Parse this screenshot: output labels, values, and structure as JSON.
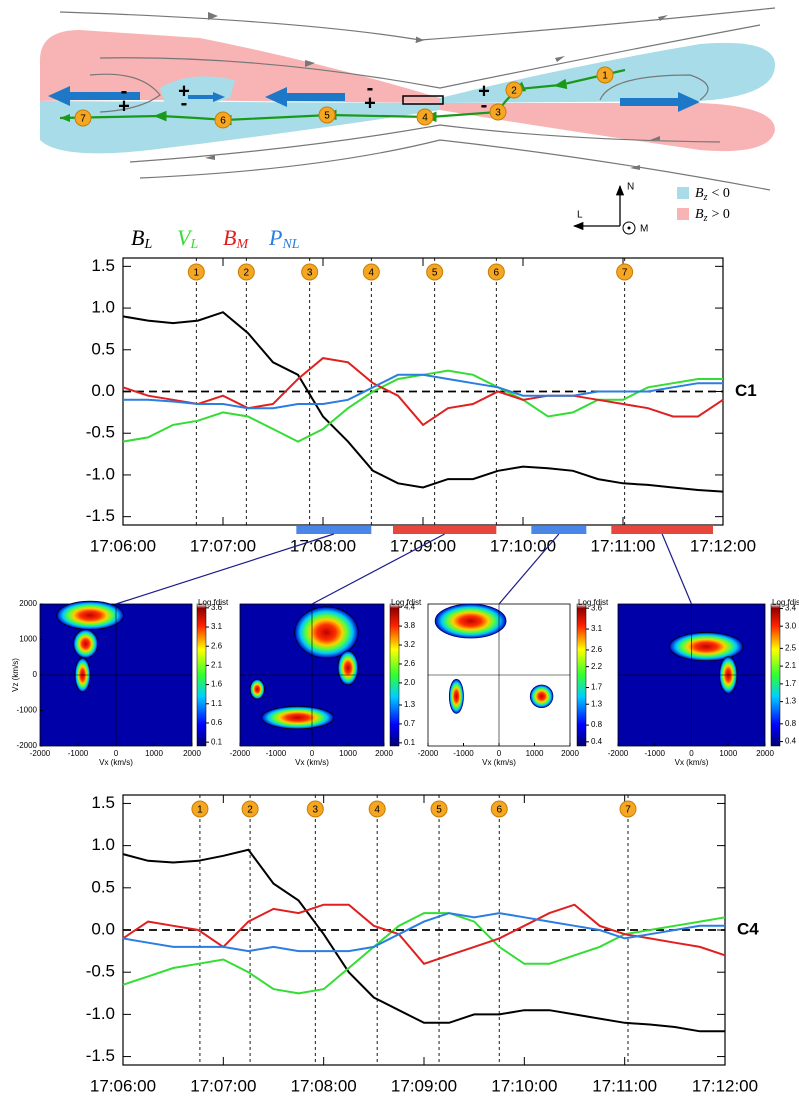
{
  "diagram": {
    "points": [
      "1",
      "2",
      "3",
      "4",
      "5",
      "6",
      "7"
    ],
    "signs": [
      "-",
      "+",
      "+",
      "-",
      "-",
      "+",
      "+",
      "-"
    ],
    "axes": {
      "n": "N",
      "l": "L",
      "m": "M"
    },
    "legend": [
      {
        "text": "B",
        "sub": "z",
        "rest": "< 0",
        "color": "#a8dce8"
      },
      {
        "text": "B",
        "sub": "z",
        "rest": "> 0",
        "color": "#f8b4b4"
      }
    ]
  },
  "chart_data": [
    {
      "type": "line",
      "label": "C1",
      "x": [
        "17:06:00",
        "17:06:15",
        "17:06:30",
        "17:06:45",
        "17:07:00",
        "17:07:15",
        "17:07:30",
        "17:07:45",
        "17:08:00",
        "17:08:15",
        "17:08:30",
        "17:08:45",
        "17:09:00",
        "17:09:15",
        "17:09:30",
        "17:09:45",
        "17:10:00",
        "17:10:15",
        "17:10:30",
        "17:10:45",
        "17:11:00",
        "17:11:15",
        "17:11:30",
        "17:11:45",
        "17:12:00"
      ],
      "series": [
        {
          "name": "B",
          "name_sub": "L",
          "color": "#000000",
          "values": [
            0.9,
            0.85,
            0.82,
            0.85,
            0.95,
            0.7,
            0.35,
            0.2,
            -0.3,
            -0.6,
            -0.95,
            -1.1,
            -1.15,
            -1.05,
            -1.05,
            -0.95,
            -0.9,
            -0.92,
            -0.95,
            -1.05,
            -1.1,
            -1.12,
            -1.15,
            -1.18,
            -1.2
          ]
        },
        {
          "name": "V",
          "name_sub": "L",
          "color": "#33dd33",
          "values": [
            -0.6,
            -0.55,
            -0.4,
            -0.35,
            -0.25,
            -0.3,
            -0.45,
            -0.6,
            -0.45,
            -0.2,
            0.0,
            0.15,
            0.2,
            0.25,
            0.2,
            0.05,
            -0.1,
            -0.3,
            -0.25,
            -0.1,
            -0.1,
            0.05,
            0.1,
            0.15,
            0.15
          ]
        },
        {
          "name": "B",
          "name_sub": "M",
          "color": "#e02020",
          "values": [
            0.05,
            -0.05,
            -0.1,
            -0.15,
            -0.05,
            -0.2,
            -0.15,
            0.15,
            0.4,
            0.35,
            0.1,
            -0.05,
            -0.4,
            -0.2,
            -0.15,
            0.0,
            -0.1,
            -0.05,
            -0.05,
            -0.1,
            -0.15,
            -0.2,
            -0.3,
            -0.3,
            -0.1
          ]
        },
        {
          "name": "P",
          "name_sub": "NL",
          "color": "#2a7de1",
          "values": [
            -0.1,
            -0.1,
            -0.12,
            -0.15,
            -0.15,
            -0.2,
            -0.2,
            -0.15,
            -0.15,
            -0.1,
            0.05,
            0.2,
            0.2,
            0.15,
            0.1,
            0.05,
            -0.05,
            -0.05,
            -0.05,
            0.0,
            0.0,
            0.0,
            0.05,
            0.1,
            0.1
          ]
        }
      ],
      "xlim": [
        "17:06:00",
        "17:12:00"
      ],
      "xticks": [
        "17:06:00",
        "17:07:00",
        "17:08:00",
        "17:09:00",
        "17:10:00",
        "17:11:00",
        "17:12:00"
      ],
      "ylim": [
        -1.6,
        1.6
      ],
      "yticks": [
        1.5,
        {
          "value": 1,
          "label": "1.0"
        },
        0.5,
        {
          "value": 0,
          "label": "0.0"
        },
        -0.5,
        {
          "value": -1,
          "label": "-1.0"
        },
        -1.5
      ],
      "zero_line": true,
      "markers": [
        {
          "label": "1",
          "x": "17:06:44"
        },
        {
          "label": "2",
          "x": "17:07:14"
        },
        {
          "label": "3",
          "x": "17:07:52"
        },
        {
          "label": "4",
          "x": "17:08:29"
        },
        {
          "label": "5",
          "x": "17:09:07"
        },
        {
          "label": "6",
          "x": "17:09:44"
        },
        {
          "label": "7",
          "x": "17:11:01"
        }
      ],
      "intervals": [
        {
          "start": "17:07:44",
          "end": "17:08:29",
          "color": "#4a86e8"
        },
        {
          "start": "17:08:42",
          "end": "17:09:44",
          "color": "#e8463c"
        },
        {
          "start": "17:10:05",
          "end": "17:10:38",
          "color": "#4a86e8"
        },
        {
          "start": "17:10:53",
          "end": "17:11:54",
          "color": "#e8463c"
        }
      ]
    },
    {
      "type": "velocity-distribution",
      "xlabel": "Vx (km/s)",
      "ylabel": "Vz (km/s)",
      "colorbar_title": "Log fdist",
      "xlim": [
        -2000,
        2000
      ],
      "ylim": [
        -2000,
        2000
      ],
      "xticks": [
        -2000,
        -1000,
        0,
        1000,
        2000
      ],
      "yticks": [
        -2000,
        -1000,
        0,
        1000,
        2000
      ],
      "clim": [
        0,
        3.7
      ],
      "cticks": [
        3.6,
        3.1,
        2.6,
        2.1,
        1.6,
        1.1,
        0.6,
        0.1
      ]
    },
    {
      "type": "velocity-distribution",
      "xlabel": "Vx (km/s)",
      "colorbar_title": "Log fdist",
      "xlim": [
        -2000,
        2000
      ],
      "ylim": [
        -2000,
        2000
      ],
      "xticks": [
        -2000,
        -1000,
        0,
        1000,
        2000
      ],
      "clim": [
        0,
        4.5
      ],
      "cticks": [
        4.4,
        3.8,
        3.2,
        2.6,
        {
          "value": 2,
          "label": "2.0"
        },
        1.3,
        0.7,
        0.1
      ]
    },
    {
      "type": "velocity-distribution",
      "xlabel": "Vx (km/s)",
      "colorbar_title": "Log fdist",
      "xlim": [
        -2000,
        2000
      ],
      "ylim": [
        -2000,
        2000
      ],
      "xticks": [
        -2000,
        -1000,
        0,
        1000,
        2000
      ],
      "clim": [
        0.3,
        3.7
      ],
      "cticks": [
        3.6,
        3.1,
        2.6,
        2.2,
        1.7,
        1.3,
        0.8,
        0.4
      ]
    },
    {
      "type": "velocity-distribution",
      "xlabel": "Vx (km/s)",
      "colorbar_title": "Log fdis",
      "xlim": [
        -2000,
        2000
      ],
      "ylim": [
        -2000,
        2000
      ],
      "xticks": [
        -2000,
        -1000,
        0,
        1000,
        2000
      ],
      "clim": [
        0.3,
        3.5
      ],
      "cticks": [
        3.4,
        {
          "value": 3,
          "label": "3.0"
        },
        2.5,
        2.1,
        1.7,
        1.3,
        0.8,
        0.4
      ]
    },
    {
      "type": "line",
      "label": "C4",
      "x": [
        "17:06:00",
        "17:06:15",
        "17:06:30",
        "17:06:45",
        "17:07:00",
        "17:07:15",
        "17:07:30",
        "17:07:45",
        "17:08:00",
        "17:08:15",
        "17:08:30",
        "17:08:45",
        "17:09:00",
        "17:09:15",
        "17:09:30",
        "17:09:45",
        "17:10:00",
        "17:10:15",
        "17:10:30",
        "17:10:45",
        "17:11:00",
        "17:11:15",
        "17:11:30",
        "17:11:45",
        "17:12:00"
      ],
      "series": [
        {
          "color": "#000000",
          "values": [
            0.9,
            0.82,
            0.8,
            0.82,
            0.88,
            0.95,
            0.55,
            0.35,
            -0.05,
            -0.5,
            -0.8,
            -0.95,
            -1.1,
            -1.1,
            -1.0,
            -1.0,
            -0.95,
            -0.95,
            -1.0,
            -1.05,
            -1.1,
            -1.12,
            -1.15,
            -1.2,
            -1.2
          ]
        },
        {
          "color": "#33dd33",
          "values": [
            -0.65,
            -0.55,
            -0.45,
            -0.4,
            -0.35,
            -0.5,
            -0.7,
            -0.75,
            -0.7,
            -0.45,
            -0.2,
            0.05,
            0.2,
            0.2,
            0.1,
            -0.2,
            -0.4,
            -0.4,
            -0.3,
            -0.2,
            -0.05,
            0.0,
            0.05,
            0.1,
            0.15
          ]
        },
        {
          "color": "#e02020",
          "values": [
            -0.1,
            0.1,
            0.05,
            0.0,
            -0.2,
            0.1,
            0.25,
            0.2,
            0.3,
            0.3,
            0.05,
            -0.05,
            -0.4,
            -0.3,
            -0.2,
            -0.1,
            0.05,
            0.2,
            0.3,
            0.05,
            -0.05,
            -0.1,
            -0.15,
            -0.2,
            -0.3
          ]
        },
        {
          "color": "#2a7de1",
          "values": [
            -0.1,
            -0.15,
            -0.2,
            -0.2,
            -0.2,
            -0.25,
            -0.2,
            -0.25,
            -0.25,
            -0.25,
            -0.2,
            -0.05,
            0.1,
            0.2,
            0.15,
            0.2,
            0.15,
            0.1,
            0.05,
            0.0,
            -0.1,
            -0.05,
            0.0,
            0.05,
            0.05
          ]
        }
      ],
      "xlim": [
        "17:06:00",
        "17:12:00"
      ],
      "xticks": [
        "17:06:00",
        "17:07:00",
        "17:08:00",
        "17:09:00",
        "17:10:00",
        "17:11:00",
        "17:12:00"
      ],
      "ylim": [
        -1.6,
        1.6
      ],
      "yticks": [
        1.5,
        {
          "value": 1,
          "label": "1.0"
        },
        0.5,
        {
          "value": 0,
          "label": "0.0"
        },
        -0.5,
        {
          "value": -1,
          "label": "-1.0"
        },
        -1.5
      ],
      "zero_line": true,
      "markers": [
        {
          "label": "1",
          "x": "17:06:46"
        },
        {
          "label": "2",
          "x": "17:07:16"
        },
        {
          "label": "3",
          "x": "17:07:55"
        },
        {
          "label": "4",
          "x": "17:08:32"
        },
        {
          "label": "5",
          "x": "17:09:09"
        },
        {
          "label": "6",
          "x": "17:09:45"
        },
        {
          "label": "7",
          "x": "17:11:02"
        }
      ]
    }
  ]
}
